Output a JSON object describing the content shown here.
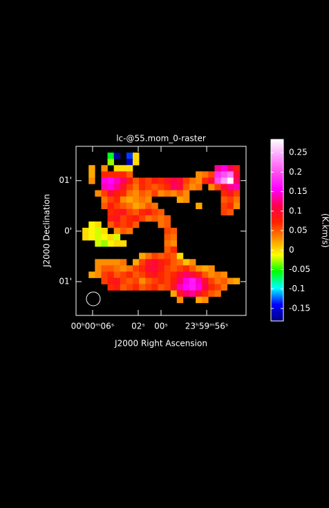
{
  "chart_data": {
    "type": "raster",
    "title": "lc-@55.mom_0-raster",
    "x_label": "J2000 Right Ascension",
    "y_label": "J2000 Declination",
    "colorbar_label": "(K.km/s)",
    "xlim": [
      7.45,
      -7.45
    ],
    "xticks": [
      {
        "value": 6,
        "label": "00ʰ00ᵐ06ˢ"
      },
      {
        "value": 2,
        "label": "02ˢ"
      },
      {
        "value": 0,
        "label": "00ˢ"
      },
      {
        "value": -4,
        "label": "23ʰ59ᵐ56ˢ"
      }
    ],
    "ylim": [
      -1.67,
      1.68
    ],
    "yticks": [
      {
        "value": 1,
        "label": "01'"
      },
      {
        "value": 0,
        "label": "0'"
      },
      {
        "value": -1,
        "label": "01'"
      }
    ],
    "zlim": [
      -0.182,
      0.284
    ],
    "zticks": [
      0.25,
      0.2,
      0.15,
      0.1,
      0.05,
      0,
      -0.05,
      -0.1,
      -0.15
    ],
    "colors": [
      "#000080",
      "#0000ff",
      "#00ffff",
      "#00ff00",
      "#ffff00",
      "#ff8c00",
      "#ff2000",
      "#ff0050",
      "#ff00ff",
      "#ff50f0",
      "#ffa0ff",
      "#ffffff"
    ],
    "z": [
      [
        null,
        null,
        null,
        null,
        null,
        null,
        null,
        null,
        null,
        null,
        null,
        null,
        null,
        null,
        null,
        null,
        null,
        null,
        null,
        null,
        null,
        null,
        null,
        null,
        null,
        null,
        null
      ],
      [
        null,
        null,
        null,
        null,
        null,
        -0.06,
        -0.17,
        null,
        -0.13,
        0,
        null,
        null,
        null,
        null,
        null,
        null,
        null,
        null,
        null,
        null,
        null,
        null,
        null,
        null,
        null,
        null,
        null
      ],
      [
        null,
        null,
        null,
        null,
        null,
        -0.03,
        null,
        null,
        -0.16,
        0,
        null,
        null,
        null,
        null,
        null,
        null,
        null,
        null,
        null,
        null,
        null,
        null,
        null,
        null,
        null,
        null,
        null
      ],
      [
        null,
        null,
        0.02,
        null,
        0.03,
        null,
        0,
        0,
        0,
        null,
        null,
        null,
        null,
        null,
        null,
        null,
        null,
        null,
        null,
        null,
        null,
        null,
        0.13,
        0.15,
        0.12,
        0.08,
        null
      ],
      [
        null,
        null,
        0.02,
        null,
        0.07,
        0.07,
        0.07,
        0.07,
        0.05,
        null,
        null,
        null,
        null,
        null,
        null,
        null,
        null,
        null,
        null,
        0.03,
        0.04,
        0.06,
        0.18,
        0.2,
        0.22,
        0.1,
        null
      ],
      [
        null,
        null,
        0.03,
        null,
        0.15,
        0.16,
        0.14,
        0.12,
        0.08,
        0.05,
        0.07,
        0.06,
        0.08,
        0.07,
        0.09,
        0.11,
        0.1,
        0.06,
        0.04,
        0.03,
        0.07,
        0.1,
        0.2,
        0.24,
        0.28,
        0.12,
        null
      ],
      [
        null,
        null,
        null,
        null,
        0.14,
        0.15,
        0.13,
        0.09,
        0.06,
        0.04,
        0.07,
        0.06,
        0.05,
        0.06,
        0.07,
        0.12,
        0.1,
        0.05,
        0.03,
        0.04,
        null,
        0.03,
        0.06,
        0.1,
        0.13,
        0.14,
        null
      ],
      [
        null,
        null,
        null,
        0.03,
        0.06,
        0.1,
        0.08,
        0.07,
        0.04,
        0.03,
        0.05,
        0.04,
        0.06,
        0.03,
        0.04,
        0.03,
        0.05,
        0.03,
        null,
        null,
        null,
        null,
        null,
        0.07,
        0.09,
        0.06,
        null
      ],
      [
        null,
        null,
        null,
        null,
        0.04,
        0.06,
        0.07,
        0.03,
        0.02,
        0.03,
        0.04,
        0.03,
        null,
        null,
        null,
        null,
        0.02,
        0.03,
        null,
        null,
        null,
        null,
        null,
        0.05,
        0.06,
        0.04,
        null
      ],
      [
        null,
        null,
        null,
        null,
        0.05,
        0.08,
        0.06,
        0.05,
        0.04,
        0.02,
        0.03,
        0.05,
        0.04,
        null,
        null,
        null,
        null,
        null,
        null,
        0.02,
        null,
        null,
        null,
        0.06,
        0.07,
        0.03,
        null
      ],
      [
        null,
        null,
        null,
        null,
        null,
        0.07,
        0.08,
        0.09,
        0.06,
        0.05,
        0.07,
        0.08,
        0.06,
        0.05,
        null,
        null,
        null,
        null,
        null,
        null,
        null,
        null,
        null,
        0.06,
        0.05,
        null,
        null
      ],
      [
        null,
        null,
        null,
        null,
        null,
        0.08,
        0.09,
        0.06,
        0.07,
        0.08,
        0.06,
        0.04,
        0.05,
        0.04,
        0.05,
        null,
        null,
        null,
        null,
        null,
        null,
        null,
        null,
        null,
        null,
        null,
        null
      ],
      [
        null,
        null,
        -0.01,
        0,
        null,
        0.05,
        0.07,
        0.06,
        0.07,
        0.05,
        null,
        null,
        null,
        0.04,
        0.05,
        null,
        null,
        null,
        null,
        null,
        null,
        null,
        null,
        null,
        null,
        null,
        null
      ],
      [
        null,
        0,
        -0.01,
        -0.02,
        0,
        null,
        0.03,
        0.05,
        0.04,
        null,
        null,
        null,
        null,
        null,
        0.06,
        0.05,
        null,
        null,
        null,
        null,
        null,
        null,
        null,
        null,
        null,
        null,
        null
      ],
      [
        null,
        0,
        -0.01,
        -0.02,
        -0.01,
        0,
        -0.02,
        null,
        null,
        null,
        null,
        null,
        null,
        null,
        0.05,
        0.04,
        null,
        null,
        null,
        null,
        null,
        null,
        null,
        null,
        null,
        null,
        null
      ],
      [
        null,
        null,
        null,
        -0.02,
        -0.03,
        -0.01,
        0,
        0,
        null,
        null,
        null,
        null,
        null,
        null,
        0.04,
        0.03,
        null,
        null,
        null,
        null,
        null,
        null,
        null,
        null,
        null,
        null,
        null
      ],
      [
        null,
        null,
        null,
        null,
        null,
        null,
        null,
        null,
        null,
        null,
        null,
        null,
        null,
        null,
        0.05,
        0.07,
        null,
        null,
        null,
        null,
        null,
        null,
        null,
        null,
        null,
        null,
        null
      ],
      [
        null,
        null,
        null,
        null,
        null,
        null,
        null,
        null,
        null,
        null,
        0.02,
        0.04,
        0.06,
        0.05,
        0.06,
        0.05,
        0,
        null,
        null,
        null,
        null,
        null,
        null,
        null,
        null,
        null,
        null
      ],
      [
        null,
        null,
        null,
        0.03,
        0.03,
        0.03,
        0.03,
        0.04,
        null,
        0.02,
        0.06,
        0.09,
        0.1,
        0.08,
        0.07,
        0.05,
        0.04,
        0.01,
        0.03,
        null,
        null,
        null,
        null,
        null,
        null,
        null,
        null
      ],
      [
        null,
        null,
        null,
        0.03,
        0.05,
        0.05,
        0.04,
        0.03,
        0.04,
        0.06,
        0.07,
        0.1,
        0.1,
        0.08,
        0.06,
        0.05,
        0.06,
        0.07,
        0.05,
        0.03,
        0.02,
        0.03,
        null,
        null,
        null,
        null,
        null
      ],
      [
        null,
        null,
        0.02,
        0.03,
        0.06,
        0.07,
        0.05,
        0.06,
        0.07,
        0.05,
        0.06,
        0.08,
        0.09,
        0.07,
        0.06,
        0.07,
        0.1,
        0.12,
        0.1,
        0.08,
        0.05,
        0.03,
        0.04,
        0.03,
        null,
        null,
        null
      ],
      [
        null,
        null,
        null,
        null,
        0.06,
        0.08,
        0.09,
        0.06,
        0.05,
        0.06,
        0.03,
        0.05,
        0.06,
        0.07,
        0.06,
        0.08,
        0.12,
        0.15,
        0.17,
        0.14,
        0.1,
        0.06,
        0.04,
        0.05,
        0.03,
        0.02,
        null
      ],
      [
        null,
        null,
        null,
        null,
        null,
        0.07,
        0.08,
        0.05,
        0.06,
        0.07,
        0.05,
        0.06,
        0.07,
        0.05,
        0.06,
        0.09,
        0.14,
        0.16,
        0.17,
        0.15,
        0.11,
        0.07,
        0.06,
        0.04,
        null,
        null,
        null
      ],
      [
        null,
        null,
        null,
        null,
        null,
        null,
        null,
        null,
        null,
        null,
        null,
        null,
        null,
        null,
        null,
        0.02,
        0.09,
        0.12,
        0.13,
        0.1,
        0.07,
        0.05,
        0.04,
        null,
        null,
        null,
        null
      ],
      [
        null,
        null,
        null,
        null,
        null,
        null,
        null,
        null,
        null,
        null,
        null,
        null,
        null,
        null,
        null,
        null,
        0.03,
        null,
        null,
        0.02,
        0.03,
        null,
        null,
        null,
        null,
        null,
        null
      ],
      [
        null,
        null,
        null,
        null,
        null,
        null,
        null,
        null,
        null,
        null,
        null,
        null,
        null,
        null,
        null,
        null,
        null,
        null,
        null,
        null,
        null,
        null,
        null,
        null,
        null,
        null,
        null
      ],
      [
        null,
        null,
        null,
        null,
        null,
        null,
        null,
        null,
        null,
        null,
        null,
        null,
        null,
        null,
        null,
        null,
        null,
        null,
        null,
        null,
        null,
        null,
        null,
        null,
        null,
        null,
        null
      ]
    ]
  }
}
